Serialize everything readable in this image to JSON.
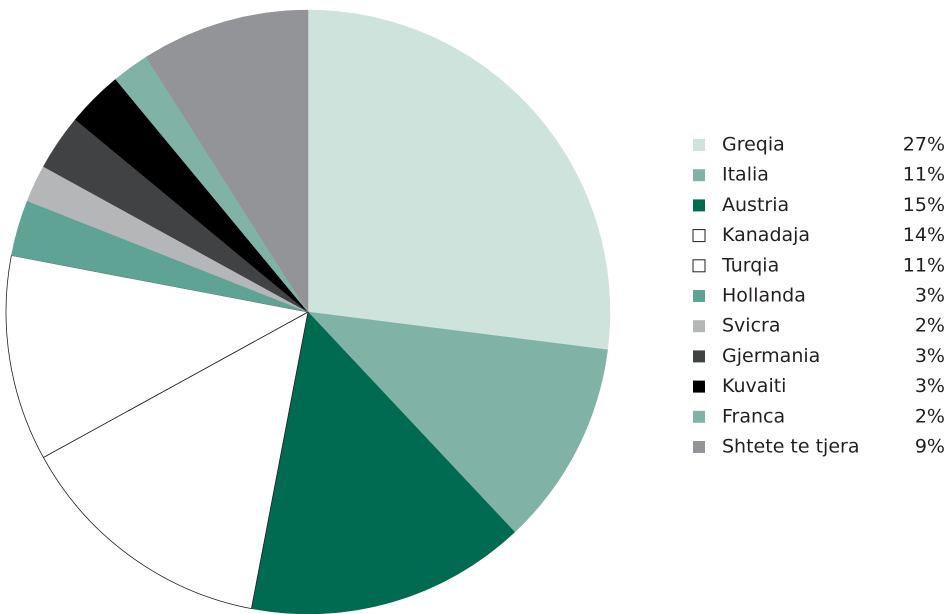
{
  "chart_data": {
    "type": "pie",
    "categories": [
      "Greqia",
      "Italia",
      "Austria",
      "Kanadaja",
      "Turqia",
      "Hollanda",
      "Svicra",
      "Gjermania",
      "Kuvaiti",
      "Franca",
      "Shtete te tjera"
    ],
    "values": [
      27,
      11,
      15,
      14,
      11,
      3,
      2,
      3,
      3,
      2,
      9
    ],
    "value_labels": [
      "27%",
      "11%",
      "15%",
      "14%",
      "11%",
      "3%",
      "2%",
      "3%",
      "3%",
      "2%",
      "9%"
    ],
    "colors": [
      "#cde3dc",
      "#80b3a5",
      "#006b50",
      "#ffffff",
      "#ffffff",
      "#5fa394",
      "#b4b6b8",
      "#414244",
      "#000000",
      "#80b3a5",
      "#929497"
    ],
    "legend": "right"
  }
}
